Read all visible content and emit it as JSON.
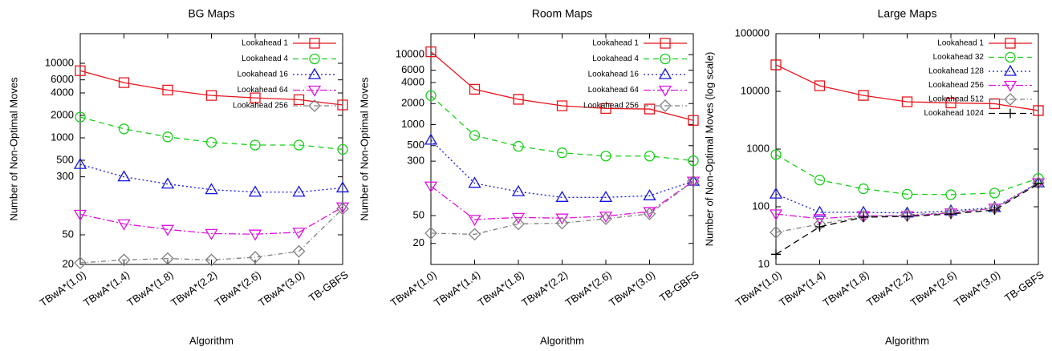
{
  "chart_data": [
    {
      "type": "line",
      "title": "BG Maps",
      "x_label": "Algorithm",
      "y_label": "Number of Non-Optimal Moves",
      "log_scale": true,
      "legend": "top-right",
      "categories": [
        "TBwA*(1.0)",
        "TBwA*(1.4)",
        "TBwA*(1.8)",
        "TBwA*(2.2)",
        "TBwA*(2.6)",
        "TBwA*(3.0)",
        "TB-GBFS"
      ],
      "ylim": [
        20,
        25000
      ],
      "yticks": [
        20,
        50,
        300,
        500,
        1000,
        2000,
        4000,
        6000,
        10000
      ],
      "series": [
        {
          "name": "Lookahead 1",
          "color": "#e8141c",
          "marker": "square",
          "dash": "none",
          "values": [
            7960,
            5500,
            4380,
            3700,
            3440,
            3250,
            2760
          ]
        },
        {
          "name": "Lookahead 4",
          "color": "#18d018",
          "marker": "circle",
          "dash": "7,5",
          "values": [
            1900,
            1320,
            1030,
            870,
            800,
            800,
            700
          ]
        },
        {
          "name": "Lookahead 16",
          "color": "#1414e0",
          "marker": "triangle-up",
          "dash": "2,3",
          "values": [
            440,
            300,
            240,
            202,
            187,
            187,
            213
          ]
        },
        {
          "name": "Lookahead 64",
          "color": "#e014e0",
          "marker": "triangle-down",
          "dash": "9,3,2,3",
          "values": [
            94,
            70,
            59,
            52,
            51,
            54,
            118
          ]
        },
        {
          "name": "Lookahead 256",
          "color": "#808080",
          "marker": "diamond",
          "dash": "6,3,1,3",
          "values": [
            21,
            23,
            24,
            23,
            25,
            30,
            112
          ]
        }
      ]
    },
    {
      "type": "line",
      "title": "Room Maps",
      "x_label": "Algorithm",
      "y_label": "Number of Non-Optimal Moves",
      "log_scale": true,
      "legend": "top-right",
      "categories": [
        "TBwA*(1.0)",
        "TBwA*(1.4)",
        "TBwA*(1.8)",
        "TBwA*(2.2)",
        "TBwA*(2.6)",
        "TBwA*(3.0)",
        "TB-GBFS"
      ],
      "ylim": [
        10,
        20000
      ],
      "yticks": [
        20,
        50,
        300,
        500,
        1000,
        2000,
        4000,
        6000,
        10000
      ],
      "series": [
        {
          "name": "Lookahead 1",
          "color": "#e8141c",
          "marker": "square",
          "dash": "none",
          "values": [
            11000,
            3200,
            2300,
            1860,
            1700,
            1670,
            1150
          ]
        },
        {
          "name": "Lookahead 4",
          "color": "#18d018",
          "marker": "circle",
          "dash": "7,5",
          "values": [
            2600,
            700,
            490,
            395,
            355,
            355,
            305
          ]
        },
        {
          "name": "Lookahead 16",
          "color": "#1414e0",
          "marker": "triangle-up",
          "dash": "2,3",
          "values": [
            600,
            145,
            110,
            91,
            91,
            96,
            155
          ]
        },
        {
          "name": "Lookahead 64",
          "color": "#e014e0",
          "marker": "triangle-down",
          "dash": "9,3,2,3",
          "values": [
            132,
            44,
            47,
            46,
            49,
            57,
            155
          ]
        },
        {
          "name": "Lookahead 256",
          "color": "#808080",
          "marker": "diamond",
          "dash": "6,3,1,3",
          "values": [
            28,
            27,
            38,
            39,
            45,
            53,
            155
          ]
        }
      ]
    },
    {
      "type": "line",
      "title": "Large Maps",
      "x_label": "Algorithm",
      "y_label": "Number of Non-Optimal Moves (log scale)",
      "log_scale": true,
      "legend": "top-right",
      "categories": [
        "TBwA*(1.0)",
        "TBwA*(1.4)",
        "TBwA*(1.8)",
        "TBwA*(2.2)",
        "TBwA*(2.6)",
        "TBwA*(3.0)",
        "TB-GBFS"
      ],
      "ylim": [
        10,
        100000
      ],
      "yticks": [
        10,
        100,
        1000,
        10000,
        100000
      ],
      "series": [
        {
          "name": "Lookahead 1",
          "color": "#e8141c",
          "marker": "square",
          "dash": "none",
          "values": [
            28800,
            12500,
            8500,
            6600,
            6300,
            6100,
            4650
          ]
        },
        {
          "name": "Lookahead 32",
          "color": "#18d018",
          "marker": "circle",
          "dash": "7,5",
          "values": [
            800,
            290,
            205,
            165,
            162,
            173,
            310
          ]
        },
        {
          "name": "Lookahead 128",
          "color": "#1414e0",
          "marker": "triangle-up",
          "dash": "2,3",
          "values": [
            166,
            80,
            80,
            78,
            85,
            97,
            260
          ]
        },
        {
          "name": "Lookahead 256",
          "color": "#e014e0",
          "marker": "triangle-down",
          "dash": "9,3,2,3",
          "values": [
            75,
            62,
            70,
            70,
            78,
            94,
            260
          ]
        },
        {
          "name": "Lookahead 512",
          "color": "#808080",
          "marker": "diamond",
          "dash": "6,3,1,3",
          "values": [
            36,
            50,
            68,
            72,
            80,
            94,
            260
          ]
        },
        {
          "name": "Lookahead 1024",
          "color": "#000000",
          "marker": "plus",
          "dash": "8,5",
          "values": [
            15,
            45,
            66,
            68,
            75,
            88,
            250
          ]
        }
      ]
    }
  ]
}
